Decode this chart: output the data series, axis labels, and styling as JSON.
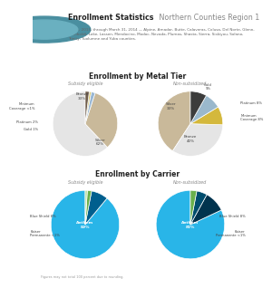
{
  "title_bold": "Enrollment Statistics",
  "title_normal": " Northern Counties Region 1",
  "subtitle": "Oct. 1, 2013, through March 31, 2014 — Alpine, Amador, Butte, Calaveras, Colusa, Del Norte, Glenn,\nHumboldt, Lake, Lassen, Mendocino, Modoc, Nevada, Plumas, Shasta, Sierra, Siskiyou, Solano,\nTrinity, Tuolumne and Yuba counties.",
  "section1_title": "Enrollment by Metal Tier",
  "section2_title": "Enrollment by Carrier",
  "subsidy_label": "Subsidy eligible",
  "nonsubsidy_label": "Non-subsidized",
  "footer": "Figures may not total 100 percent due to rounding.",
  "metal_subsidy_values": [
    62,
    33,
    2,
    1,
    2
  ],
  "metal_subsidy_colors": [
    "#e5e5e5",
    "#c9b99a",
    "#9ab8d4",
    "#d4c46a",
    "#6e5c4c"
  ],
  "metal_nonsubsidy_values": [
    40,
    33,
    9,
    8,
    8
  ],
  "metal_nonsubsidy_colors": [
    "#c9b99a",
    "#e5e5e5",
    "#d4b83c",
    "#9ab8cc",
    "#3c3c3c"
  ],
  "carrier_subsidy_values": [
    89,
    8,
    2,
    1
  ],
  "carrier_subsidy_colors": [
    "#29b5e8",
    "#005f8e",
    "#6ab04c",
    "#b8dea0"
  ],
  "carrier_nonsubsidy_values": [
    82,
    10,
    5,
    3
  ],
  "carrier_nonsubsidy_colors": [
    "#29b5e8",
    "#00334e",
    "#004d6e",
    "#6ab04c"
  ],
  "bg_color": "#ffffff",
  "logo_color": "#4a90a4",
  "divider_color": "#d0d0d0",
  "text_color": "#333333",
  "label_color": "#666666"
}
